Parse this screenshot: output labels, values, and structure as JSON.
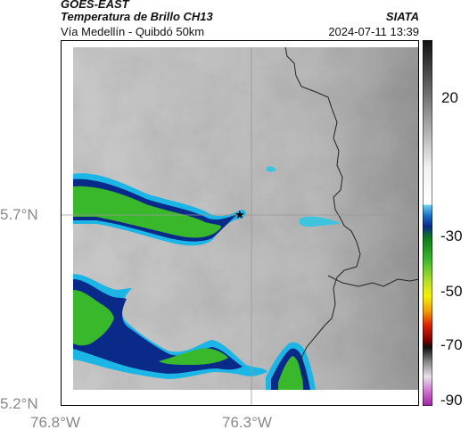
{
  "header": {
    "satellite": "GOES-EAST",
    "product": "Temperatura de Brillo CH13",
    "route": "Vía Medellín - Quibdó 50km",
    "organization": "SIATA",
    "timestamp": "2024-07-11 13:39"
  },
  "map": {
    "lat_ticks": [
      "5.7°N",
      "5.2°N"
    ],
    "lon_ticks": [
      "76.8°W",
      "76.3°W"
    ],
    "marker": "star"
  },
  "colorbar": {
    "labels": [
      "20",
      "-30",
      "-50",
      "-70",
      "-90"
    ]
  },
  "colors": {
    "green": "#3ab82c",
    "cyan": "#3fc4e0",
    "blue": "#1b6fc8",
    "navy": "#0a2a8a",
    "grey_dark": "#6a6a6a",
    "grey_light": "#e6e6e6"
  }
}
